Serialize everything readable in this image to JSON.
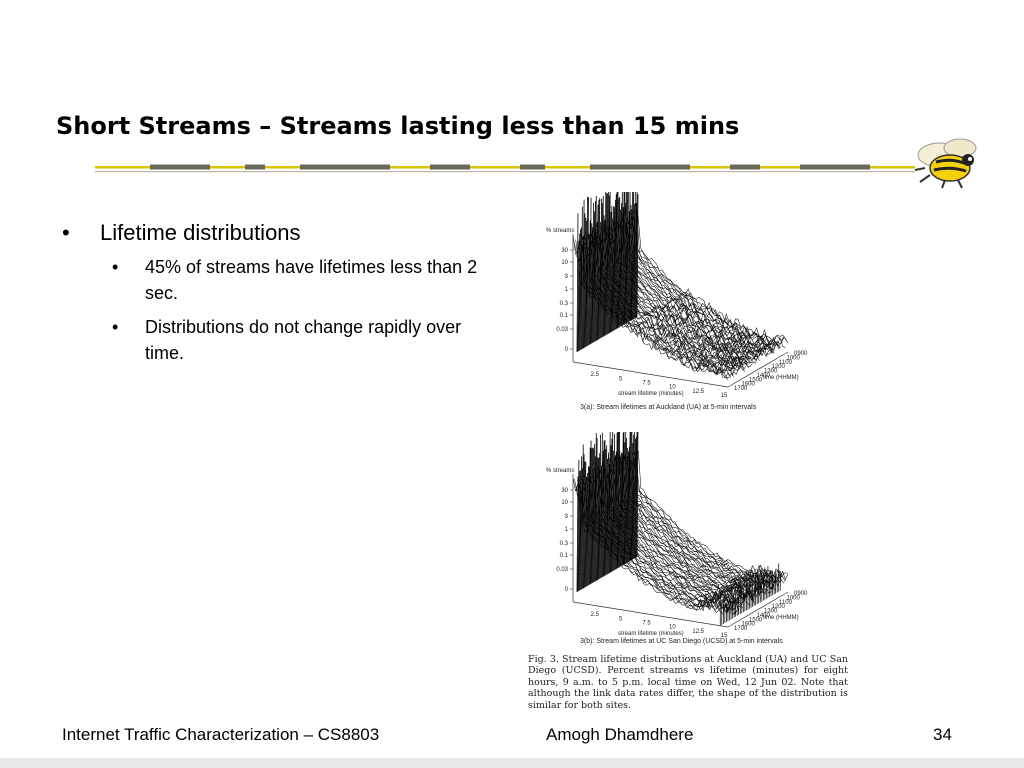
{
  "slide": {
    "title": "Short Streams – Streams lasting less than 15 mins",
    "bullet_glyph": "•",
    "bullets": [
      {
        "text": "Lifetime distributions",
        "sub": [
          "45% of streams have lifetimes less than 2 sec.",
          "Distributions do not change rapidly over time."
        ]
      }
    ]
  },
  "figures": [
    {
      "z_label": "% streams",
      "z_ticks": [
        "30",
        "10",
        "3",
        "1",
        "0.3",
        "0.1",
        "0.03",
        "0"
      ],
      "x_label": "stream lifetime (minutes)",
      "x_ticks": [
        "2.5",
        "5",
        "7.5",
        "10",
        "12.5",
        "15"
      ],
      "y_label": "time (HHMM)",
      "y_ticks": [
        "0900",
        "1000",
        "1100",
        "1200",
        "1300",
        "1400",
        "1500",
        "1600",
        "1700"
      ],
      "caption": "3(a):   Stream lifetimes at Auckland (UA) at 5-min intervals"
    },
    {
      "z_label": "% streams",
      "z_ticks": [
        "30",
        "10",
        "3",
        "1",
        "0.3",
        "0.1",
        "0.03",
        "0"
      ],
      "x_label": "stream lifetime (minutes)",
      "x_ticks": [
        "2.5",
        "5",
        "7.5",
        "10",
        "12.5",
        "15"
      ],
      "y_label": "time (HHMM)",
      "y_ticks": [
        "0900",
        "1000",
        "1100",
        "1200",
        "1300",
        "1400",
        "1500",
        "1600",
        "1700"
      ],
      "caption": "3(b):   Stream lifetimes at UC San Diego (UCSD) at 5-min intervals"
    }
  ],
  "fig_caption": "Fig. 3.   Stream lifetime distributions at Auckland (UA) and UC San Diego (UCSD). Percent streams vs lifetime (minutes) for eight hours, 9 a.m. to 5 p.m. local time on Wed, 12 Jun 02. Note that although the link data rates differ, the shape of the distribution is similar for both sites.",
  "footer": {
    "left": "Internet Traffic Characterization – CS8803",
    "center": "Amogh Dhamdhere",
    "page": "34"
  },
  "colors": {
    "rule_gold": "#d8c500",
    "rule_dark": "#6b6a5a",
    "mascot_yellow": "#f5d10c"
  },
  "icons": {
    "mascot": "yellow-jacket-mascot-icon"
  }
}
